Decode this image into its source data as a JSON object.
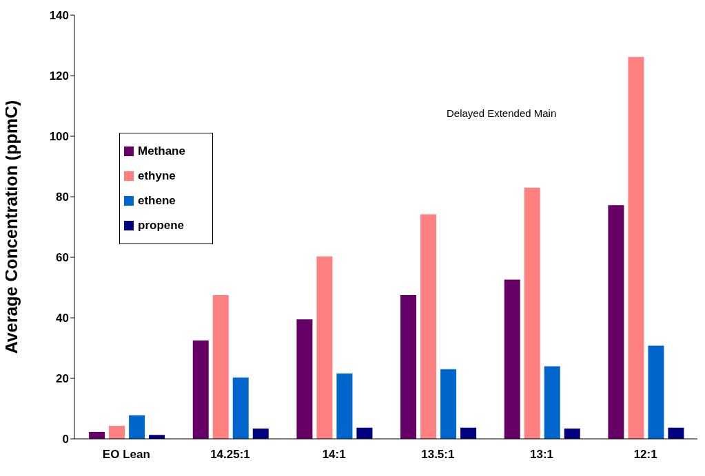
{
  "chart_data": {
    "type": "bar",
    "ylabel": "Average Concentration (ppmC)",
    "categories": [
      "EO Lean",
      "14.25:1",
      "14:1",
      "13.5:1",
      "13:1",
      "12:1"
    ],
    "series": [
      {
        "name": "Methane",
        "color": "#660066",
        "values": [
          2.3,
          32.5,
          39.5,
          47.5,
          52.6,
          77.2
        ]
      },
      {
        "name": "ethyne",
        "color": "#ff8080",
        "values": [
          4.3,
          47.5,
          60.3,
          74.2,
          83,
          126.2
        ]
      },
      {
        "name": "ethene",
        "color": "#0066cc",
        "values": [
          7.8,
          20.3,
          21.6,
          23,
          24,
          30.8
        ]
      },
      {
        "name": "propene",
        "color": "#000080",
        "values": [
          1.3,
          3.4,
          3.7,
          3.7,
          3.4,
          3.7
        ]
      }
    ],
    "ylim": [
      0,
      140
    ],
    "yticks": [
      0,
      20,
      40,
      60,
      80,
      100,
      120,
      140
    ],
    "grid": false,
    "legend": "left",
    "annotations": [
      "Delayed Extended Main"
    ]
  }
}
